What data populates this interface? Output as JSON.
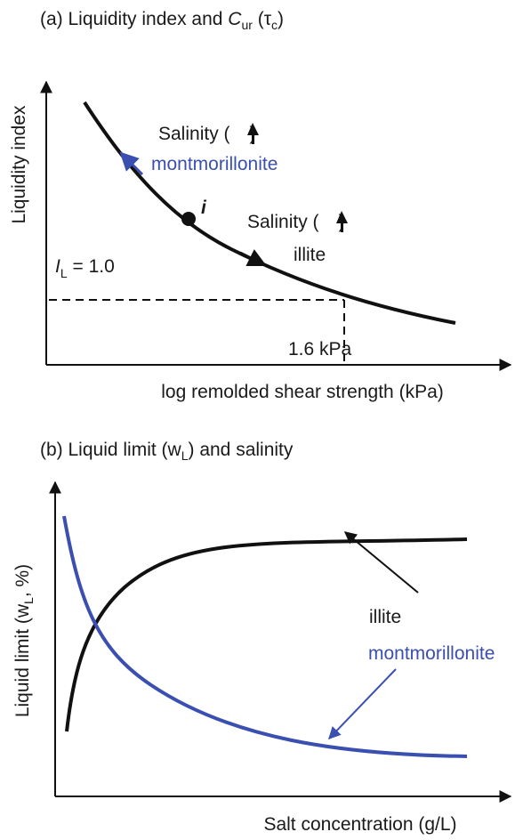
{
  "panel_a": {
    "title": {
      "pre": "(a) Liquidity index and ",
      "c": "C",
      "c_sub": "ur",
      "mid": " (τ",
      "tau_sub": "c",
      "end": ")"
    },
    "y_label": "Liquidity index",
    "x_label": "log remolded shear strength (kPa)",
    "salinity_open": "Salinity (",
    "salinity_close": ")",
    "montmorillonite": "montmorillonite",
    "point": "i",
    "illite": "illite",
    "il": {
      "i": "I",
      "sub": "L",
      "rest": " = 1.0"
    },
    "strength": "1.6 kPa"
  },
  "panel_b": {
    "title": {
      "pre": "(b) Liquid limit (w",
      "sub": "L",
      "end": ") and salinity"
    },
    "y_label": {
      "pre": "Liquid limit (w",
      "sub": "L",
      "end": ", %)"
    },
    "x_label": "Salt concentration (g/L)",
    "illite": "illite",
    "montmorillonite": "montmorillonite"
  }
}
